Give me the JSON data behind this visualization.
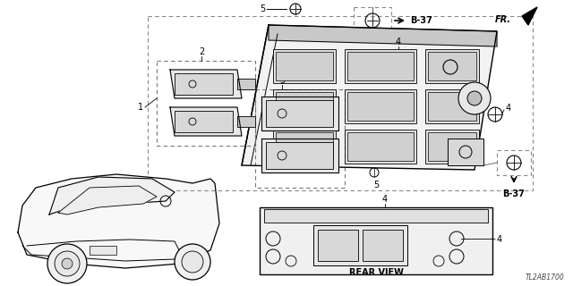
{
  "bg_color": "#ffffff",
  "line_color": "#000000",
  "diagram_code": "TL2AB1700",
  "fr_label": "FR.",
  "b37_label": "B-37",
  "rear_view_label": "REAR VIEW",
  "figw": 6.4,
  "figh": 3.2,
  "dpi": 100
}
